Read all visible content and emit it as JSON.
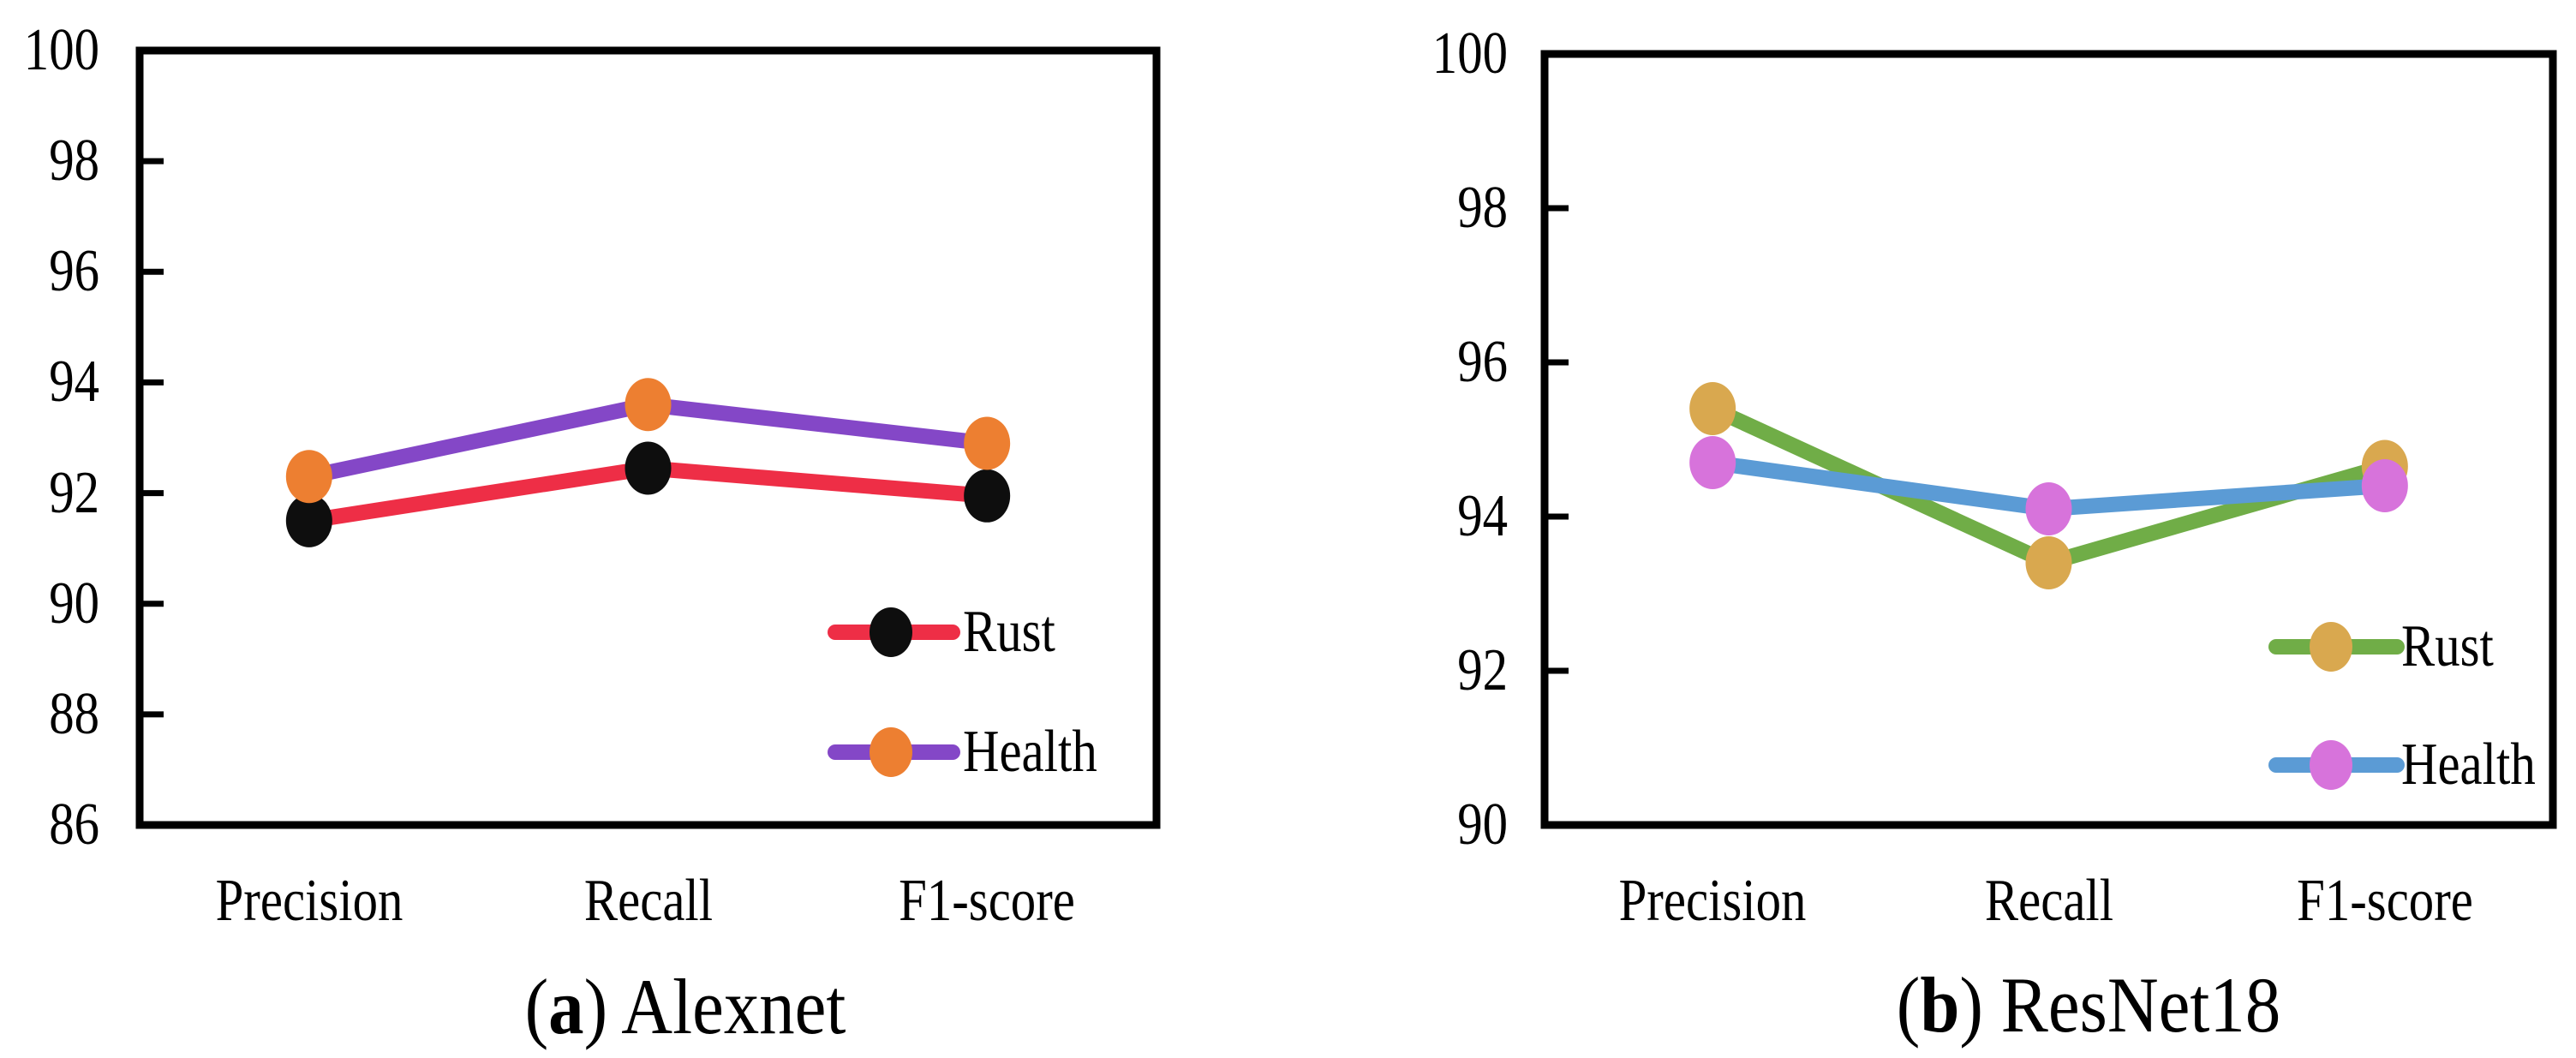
{
  "figure": {
    "background_color": "#ffffff",
    "panels": [
      {
        "caption": {
          "open_paren": "(",
          "bold_letter": "a",
          "rest": ") Alexnet"
        }
      },
      {
        "caption": {
          "open_paren": "(",
          "bold_letter": "b",
          "rest": ") ResNet18"
        }
      }
    ]
  },
  "chart_data": [
    {
      "type": "line",
      "title": "(a) Alexnet",
      "categories": [
        "Precision",
        "Recall",
        "F1-score"
      ],
      "series": [
        {
          "name": "Rust",
          "values": [
            91.5,
            92.45,
            91.95
          ],
          "line_color": "#EE2E46",
          "marker_color": "#0E0E0E"
        },
        {
          "name": "Health",
          "values": [
            92.3,
            93.6,
            92.9
          ],
          "line_color": "#8447C7",
          "marker_color": "#ED7F31"
        }
      ],
      "xlabel": "",
      "ylabel": "",
      "ylim": [
        86,
        100
      ],
      "y_ticks": [
        100,
        98,
        96,
        94,
        92,
        90,
        88,
        86
      ],
      "grid": false,
      "legend_position": "lower right"
    },
    {
      "type": "line",
      "title": "(b) ResNet18",
      "categories": [
        "Precision",
        "Recall",
        "F1-score"
      ],
      "series": [
        {
          "name": "Rust",
          "values": [
            95.4,
            93.4,
            94.65
          ],
          "line_color": "#70AD47",
          "marker_color": "#D9A84F"
        },
        {
          "name": "Health",
          "values": [
            94.7,
            94.1,
            94.4
          ],
          "line_color": "#5B9BD5",
          "marker_color": "#D773DB"
        }
      ],
      "xlabel": "",
      "ylabel": "",
      "ylim": [
        90,
        100
      ],
      "y_ticks": [
        100,
        98,
        96,
        94,
        92,
        90
      ],
      "grid": false,
      "legend_position": "lower right"
    }
  ]
}
